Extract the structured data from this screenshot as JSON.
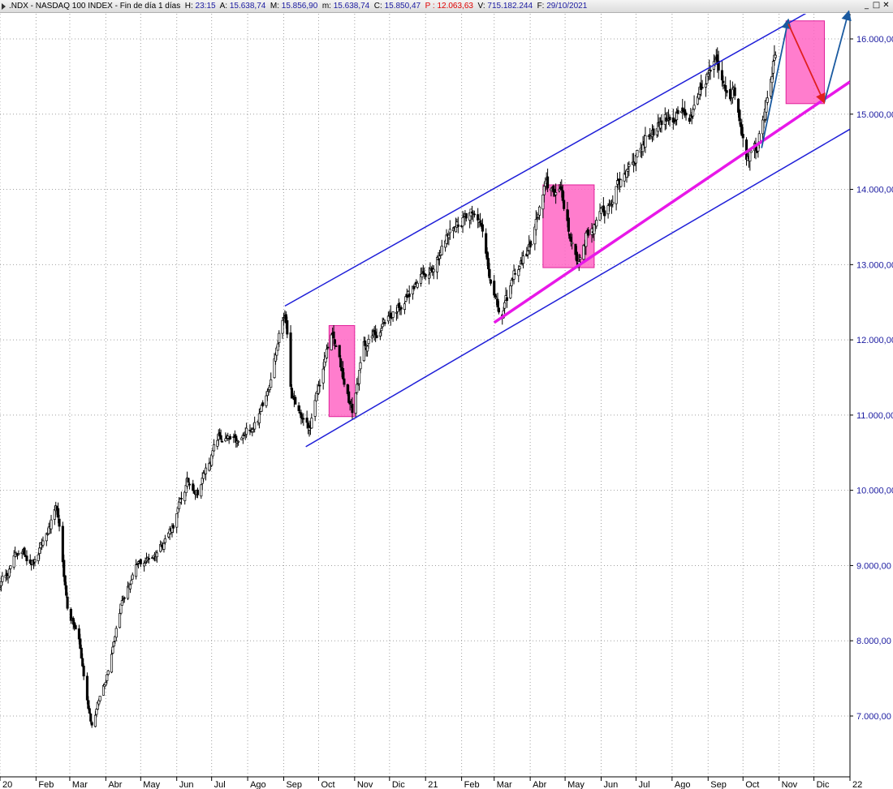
{
  "header": {
    "symbol": ".NDX - NASDAQ 100 INDEX",
    "period": "Fin de día 1 días",
    "fields": [
      {
        "label": "H:",
        "value": "23:15"
      },
      {
        "label": "A:",
        "value": "15.638,74"
      },
      {
        "label": "M:",
        "value": "15.856,90"
      },
      {
        "label": "m:",
        "value": "15.638,74"
      },
      {
        "label": "C:",
        "value": "15.850,47"
      }
    ],
    "p_label": "P :",
    "p_value": "12.063,63",
    "v_label": "V:",
    "v_value": "715.182.244",
    "f_label": "F:",
    "f_value": "29/10/2021",
    "window_buttons": [
      "_",
      "□",
      "✕"
    ]
  },
  "colors": {
    "candle": "#000000",
    "channel": "#1f1fd8",
    "support": "#e818e8",
    "box_fill": "#ff66c4",
    "box_stroke": "#e0209a",
    "arrow_up": "#1a5aa0",
    "arrow_down": "#e02020",
    "axis_text": "#1a1aa0",
    "grid": "#a0a0a0"
  },
  "chart_data": {
    "type": "candlestick",
    "title": "",
    "xlabel": "",
    "ylabel": "",
    "ylim": [
      6200,
      16350
    ],
    "grid": true,
    "y_ticks": [
      {
        "value": 7000,
        "label": "7.000,00"
      },
      {
        "value": 8000,
        "label": "8.000,00"
      },
      {
        "value": 9000,
        "label": "9.000,00"
      },
      {
        "value": 10000,
        "label": "10.000,00"
      },
      {
        "value": 11000,
        "label": "11.000,00"
      },
      {
        "value": 12000,
        "label": "12.000,00"
      },
      {
        "value": 13000,
        "label": "13.000,00"
      },
      {
        "value": 14000,
        "label": "14.000,00"
      },
      {
        "value": 15000,
        "label": "15.000,00"
      },
      {
        "value": 16000,
        "label": "16.000,00"
      }
    ],
    "x_ticks": [
      {
        "date": "2020-01-01",
        "label": "20"
      },
      {
        "date": "2020-02-01",
        "label": "Feb"
      },
      {
        "date": "2020-03-01",
        "label": "Mar"
      },
      {
        "date": "2020-04-01",
        "label": "Abr"
      },
      {
        "date": "2020-05-01",
        "label": "May"
      },
      {
        "date": "2020-06-01",
        "label": "Jun"
      },
      {
        "date": "2020-07-01",
        "label": "Jul"
      },
      {
        "date": "2020-08-01",
        "label": "Ago"
      },
      {
        "date": "2020-09-01",
        "label": "Sep"
      },
      {
        "date": "2020-10-01",
        "label": "Oct"
      },
      {
        "date": "2020-11-01",
        "label": "Nov"
      },
      {
        "date": "2020-12-01",
        "label": "Dic"
      },
      {
        "date": "2021-01-01",
        "label": "21"
      },
      {
        "date": "2021-02-01",
        "label": "Feb"
      },
      {
        "date": "2021-03-01",
        "label": "Mar"
      },
      {
        "date": "2021-04-01",
        "label": "Abr"
      },
      {
        "date": "2021-05-01",
        "label": "May"
      },
      {
        "date": "2021-06-01",
        "label": "Jun"
      },
      {
        "date": "2021-07-01",
        "label": "Jul"
      },
      {
        "date": "2021-08-01",
        "label": "Ago"
      },
      {
        "date": "2021-09-01",
        "label": "Sep"
      },
      {
        "date": "2021-10-01",
        "label": "Oct"
      },
      {
        "date": "2021-11-01",
        "label": "Nov"
      },
      {
        "date": "2021-12-01",
        "label": "Dic"
      },
      {
        "date": "2022-01-01",
        "label": "22"
      }
    ],
    "price_path": [
      [
        "2020-01-01",
        8750
      ],
      [
        "2020-01-17",
        9200
      ],
      [
        "2020-01-31",
        9050
      ],
      [
        "2020-02-19",
        9730
      ],
      [
        "2020-02-28",
        8450
      ],
      [
        "2020-03-09",
        8000
      ],
      [
        "2020-03-16",
        7200
      ],
      [
        "2020-03-20",
        6900
      ],
      [
        "2020-04-01",
        7500
      ],
      [
        "2020-04-14",
        8500
      ],
      [
        "2020-04-29",
        9000
      ],
      [
        "2020-05-13",
        9150
      ],
      [
        "2020-05-29",
        9550
      ],
      [
        "2020-06-10",
        10100
      ],
      [
        "2020-06-19",
        10000
      ],
      [
        "2020-07-07",
        10700
      ],
      [
        "2020-07-24",
        10600
      ],
      [
        "2020-08-11",
        11000
      ],
      [
        "2020-08-20",
        11500
      ],
      [
        "2020-09-02",
        12400
      ],
      [
        "2020-09-08",
        11200
      ],
      [
        "2020-09-23",
        10800
      ],
      [
        "2020-10-12",
        12100
      ],
      [
        "2020-10-30",
        11050
      ],
      [
        "2020-11-09",
        11900
      ],
      [
        "2020-11-30",
        12300
      ],
      [
        "2020-12-31",
        12850
      ],
      [
        "2021-01-25",
        13500
      ],
      [
        "2021-02-12",
        13800
      ],
      [
        "2021-02-19",
        13400
      ],
      [
        "2021-03-04",
        12400
      ],
      [
        "2021-03-08",
        12300
      ],
      [
        "2021-03-19",
        12900
      ],
      [
        "2021-03-31",
        13200
      ],
      [
        "2021-04-14",
        14000
      ],
      [
        "2021-04-26",
        14000
      ],
      [
        "2021-05-12",
        13000
      ],
      [
        "2021-05-19",
        13400
      ],
      [
        "2021-06-04",
        13700
      ],
      [
        "2021-06-25",
        14350
      ],
      [
        "2021-07-15",
        14800
      ],
      [
        "2021-07-30",
        15000
      ],
      [
        "2021-08-18",
        14900
      ],
      [
        "2021-08-31",
        15500
      ],
      [
        "2021-09-07",
        15650
      ],
      [
        "2021-09-17",
        15400
      ],
      [
        "2021-09-24",
        15300
      ],
      [
        "2021-10-04",
        14500
      ],
      [
        "2021-10-13",
        14600
      ],
      [
        "2021-10-22",
        15350
      ],
      [
        "2021-10-29",
        15850
      ]
    ],
    "annotations": {
      "channel_upper": [
        [
          "2020-09-02",
          12450
        ],
        [
          "2021-12-01",
          16400
        ]
      ],
      "channel_lower": [
        [
          "2020-09-20",
          10580
        ],
        [
          "2022-01-01",
          14800
        ]
      ],
      "support_line": [
        [
          "2021-03-01",
          12230
        ],
        [
          "2022-01-01",
          15430
        ]
      ],
      "boxes": [
        {
          "x0": "2020-10-10",
          "x1": "2020-11-01",
          "y0": 10980,
          "y1": 12190
        },
        {
          "x0": "2021-04-12",
          "x1": "2021-05-26",
          "y0": 12960,
          "y1": 14060
        },
        {
          "x0": "2021-11-07",
          "x1": "2021-12-10",
          "y0": 15140,
          "y1": 16240
        }
      ],
      "arrows_up": [
        [
          [
            "2021-10-17",
            14550
          ],
          [
            "2021-11-09",
            16260
          ]
        ],
        [
          [
            "2021-12-10",
            15160
          ],
          [
            "2021-12-31",
            16370
          ]
        ]
      ],
      "arrows_down": [
        [
          [
            "2021-11-09",
            16200
          ],
          [
            "2021-12-10",
            15150
          ]
        ]
      ]
    }
  }
}
